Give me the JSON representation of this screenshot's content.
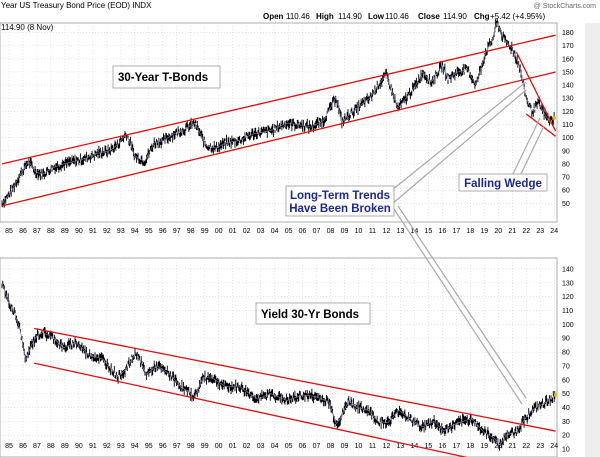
{
  "header": {
    "title": "Year US Treasury Bond Price (EOD)  INDX",
    "watermark": "@ StockCharts.com",
    "open_label": "Open",
    "open_value": "110.46",
    "high_label": "High",
    "high_value": "114.90",
    "low_label": "Low",
    "low_value": "110.46",
    "close_label": "Close",
    "close_value": "114.90",
    "chg_label": "Chg",
    "chg_value": "+5.42 (+4.95%)",
    "last_label": "114.90 (8 Nov)"
  },
  "colors": {
    "price_bars": "#000000",
    "moving_average": "#7a7fb0",
    "trendline": "#e01010",
    "callout_blue": "#1b2a8c",
    "grid": "#cccccc"
  },
  "chart_data": [
    {
      "type": "line",
      "title": "30-Year T-Bonds",
      "ylim": [
        35,
        185
      ],
      "yticks": [
        50,
        60,
        70,
        80,
        90,
        100,
        110,
        120,
        130,
        140,
        150,
        160,
        170,
        180
      ],
      "x_ticks": [
        "85",
        "86",
        "87",
        "88",
        "89",
        "90",
        "91",
        "92",
        "93",
        "94",
        "95",
        "96",
        "97",
        "98",
        "99",
        "00",
        "01",
        "02",
        "03",
        "04",
        "05",
        "06",
        "07",
        "08",
        "09",
        "10",
        "11",
        "12",
        "13",
        "14",
        "15",
        "16",
        "17",
        "18",
        "19",
        "20",
        "21",
        "22",
        "23",
        "24"
      ],
      "price_series": {
        "name": "30-Year T-Bonds",
        "x": [
          1985.0,
          1985.6,
          1986.3,
          1986.9,
          1987.4,
          1987.9,
          1988.6,
          1989.4,
          1990.2,
          1990.9,
          1991.8,
          1992.7,
          1993.3,
          1993.9,
          1994.5,
          1995.2,
          1995.9,
          1996.6,
          1997.3,
          1998.0,
          1998.8,
          1999.6,
          2000.3,
          2001.0,
          2002.0,
          2003.0,
          2003.6,
          2004.4,
          2005.3,
          2006.2,
          2007.1,
          2008.0,
          2008.9,
          2009.3,
          2009.9,
          2010.7,
          2011.3,
          2011.9,
          2012.5,
          2013.3,
          2013.9,
          2014.6,
          2015.1,
          2015.7,
          2016.5,
          2016.9,
          2017.6,
          2018.3,
          2018.9,
          2019.6,
          2020.1,
          2020.4,
          2020.9,
          2021.5,
          2022.0,
          2022.5,
          2022.9,
          2023.4,
          2023.8,
          2024.2,
          2024.5
        ],
        "values": [
          50,
          58,
          72,
          82,
          74,
          72,
          77,
          80,
          82,
          84,
          88,
          90,
          95,
          103,
          86,
          82,
          96,
          98,
          103,
          106,
          111,
          94,
          92,
          96,
          98,
          103,
          104,
          106,
          111,
          110,
          108,
          113,
          131,
          112,
          118,
          125,
          130,
          140,
          148,
          122,
          130,
          140,
          150,
          142,
          155,
          145,
          150,
          152,
          140,
          165,
          175,
          188,
          175,
          168,
          155,
          130,
          120,
          126,
          118,
          112,
          114.9
        ]
      },
      "upper_trendline": {
        "x": [
          1985.0,
          2024.6
        ],
        "values": [
          80,
          178
        ]
      },
      "lower_trendline": {
        "x": [
          1985.0,
          2024.6
        ],
        "values": [
          48,
          150
        ]
      },
      "wedge_upper": {
        "x": [
          2021.8,
          2024.6
        ],
        "values": [
          165,
          105
        ]
      },
      "wedge_lower": {
        "x": [
          2022.5,
          2024.6
        ],
        "values": [
          118,
          101
        ]
      },
      "annotations": [
        "30-Year T-Bonds",
        "Long-Term Trends",
        "Have Been Broken",
        "Falling Wedge"
      ]
    },
    {
      "type": "line",
      "title": "Yield 30-Yr Bonds",
      "ylim": [
        5,
        145
      ],
      "yticks": [
        10,
        20,
        30,
        40,
        50,
        60,
        70,
        80,
        90,
        100,
        110,
        120,
        130,
        140
      ],
      "x_ticks": [
        "85",
        "86",
        "87",
        "88",
        "89",
        "90",
        "91",
        "92",
        "93",
        "94",
        "95",
        "96",
        "97",
        "98",
        "99",
        "00",
        "01",
        "02",
        "03",
        "04",
        "05",
        "06",
        "07",
        "08",
        "09",
        "10",
        "11",
        "12",
        "13",
        "14",
        "15",
        "16",
        "17",
        "18",
        "19",
        "20",
        "21",
        "22",
        "23",
        "24"
      ],
      "price_series": {
        "name": "Yield 30-Yr Bonds",
        "x": [
          1985.0,
          1985.4,
          1985.9,
          1986.3,
          1986.7,
          1987.1,
          1987.5,
          1987.9,
          1988.6,
          1989.4,
          1990.3,
          1991.2,
          1992.2,
          1993.3,
          1993.9,
          1994.6,
          1995.3,
          1996.1,
          1997.0,
          1997.8,
          1998.8,
          1999.4,
          2000.1,
          2001.0,
          2002.0,
          2003.3,
          2004.2,
          2005.4,
          2006.5,
          2007.4,
          2008.4,
          2008.9,
          2009.2,
          2009.8,
          2010.4,
          2011.2,
          2011.9,
          2012.6,
          2013.4,
          2014.3,
          2015.1,
          2015.9,
          2016.6,
          2017.4,
          2018.6,
          2019.5,
          2020.2,
          2020.6,
          2021.1,
          2021.8,
          2022.5,
          2022.9,
          2023.4,
          2023.8,
          2024.2,
          2024.6
        ],
        "values": [
          130,
          118,
          108,
          96,
          74,
          85,
          92,
          94,
          91,
          83,
          87,
          78,
          75,
          62,
          68,
          80,
          64,
          70,
          64,
          55,
          48,
          62,
          61,
          55,
          55,
          46,
          50,
          45,
          49,
          48,
          44,
          28,
          32,
          45,
          40,
          38,
          30,
          29,
          38,
          31,
          26,
          30,
          23,
          28,
          32,
          22,
          18,
          13,
          20,
          23,
          33,
          38,
          41,
          43,
          46,
          49
        ]
      },
      "upper_trendline": {
        "x": [
          1987.3,
          2024.6
        ],
        "values": [
          97,
          23
        ]
      },
      "lower_trendline": {
        "x": [
          1987.3,
          2024.6
        ],
        "values": [
          72,
          -10
        ]
      },
      "annotations": [
        "Yield 30-Yr Bonds"
      ]
    }
  ]
}
